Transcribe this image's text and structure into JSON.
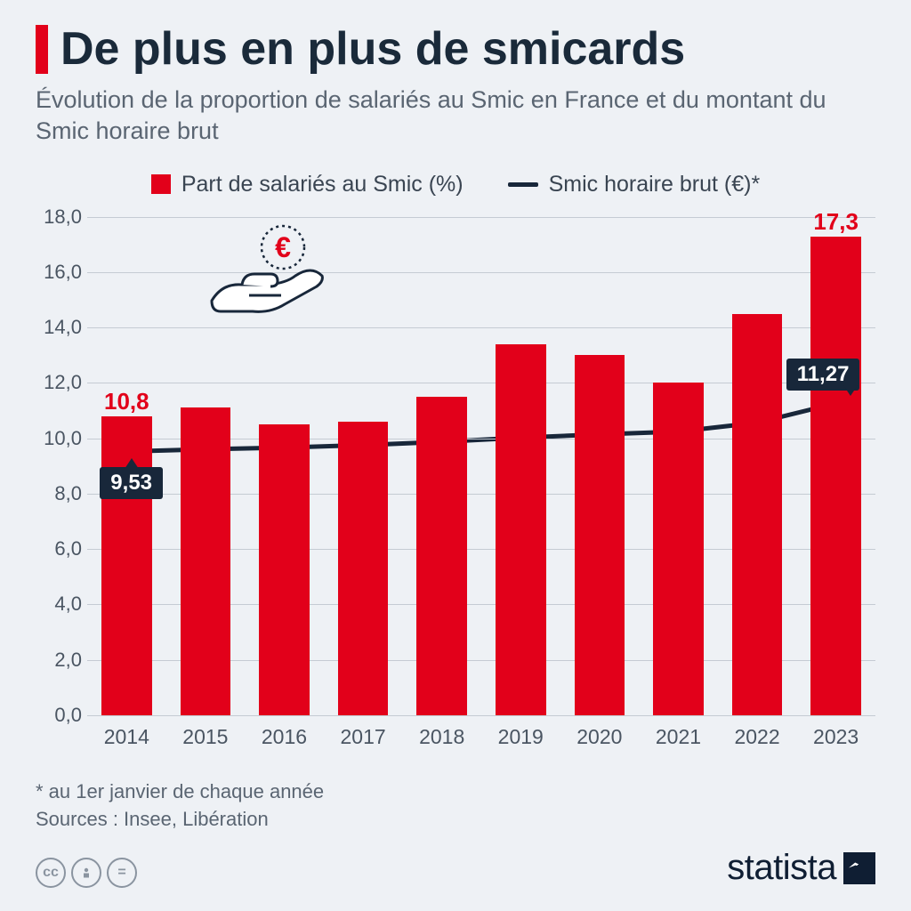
{
  "header": {
    "title": "De plus en plus de smicards",
    "subtitle": "Évolution de la proportion de salariés au Smic en France et du montant du Smic horaire brut",
    "accent_color": "#e2001a",
    "title_color": "#1a2a3a",
    "subtitle_color": "#5a6572",
    "title_fontsize": 52,
    "subtitle_fontsize": 27
  },
  "legend": {
    "bar_label": "Part de salariés au Smic (%)",
    "line_label": "Smic horaire brut (€)*",
    "bar_color": "#e2001a",
    "line_color": "#18273a",
    "fontsize": 25
  },
  "chart": {
    "type": "bar+line",
    "categories": [
      "2014",
      "2015",
      "2016",
      "2017",
      "2018",
      "2019",
      "2020",
      "2021",
      "2022",
      "2023"
    ],
    "bar_values": [
      10.8,
      11.1,
      10.5,
      10.6,
      11.5,
      13.4,
      13.0,
      12.0,
      14.5,
      17.3
    ],
    "bar_color": "#e2001a",
    "bar_width": 0.64,
    "bar_value_labels": [
      {
        "index": 0,
        "text": "10,8"
      },
      {
        "index": 9,
        "text": "17,3"
      }
    ],
    "line_values": [
      9.53,
      9.61,
      9.67,
      9.76,
      9.88,
      10.03,
      10.15,
      10.25,
      10.57,
      11.27
    ],
    "line_color": "#18273a",
    "line_width": 5,
    "line_value_labels": [
      {
        "index": 0,
        "text": "9,53",
        "position": "below"
      },
      {
        "index": 9,
        "text": "11,27",
        "position": "above"
      }
    ],
    "ylim": [
      0,
      18
    ],
    "ytick_step": 2,
    "yticks": [
      "0,0",
      "2,0",
      "4,0",
      "6,0",
      "8,0",
      "10,0",
      "12,0",
      "14,0",
      "16,0",
      "18,0"
    ],
    "grid_color": "#c5cbd3",
    "axis_label_color": "#4a5562",
    "axis_label_fontsize": 22,
    "background_color": "#eef1f5"
  },
  "icon": {
    "name": "hand-euro-icon",
    "stroke_color": "#18273a",
    "euro_color": "#e2001a"
  },
  "footer": {
    "note": "* au 1er janvier de chaque année",
    "sources": "Sources : Insee, Libération",
    "cc": [
      "cc",
      "by",
      "nd"
    ],
    "logo_text": "statista",
    "logo_color": "#0f1e33"
  }
}
